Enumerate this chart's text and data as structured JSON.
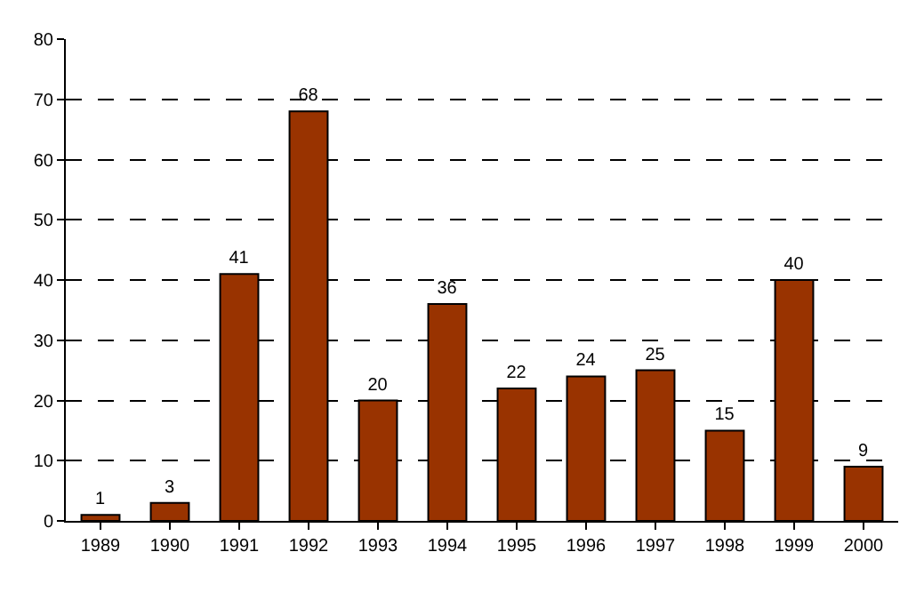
{
  "chart_data": {
    "type": "bar",
    "categories": [
      "1989",
      "1990",
      "1991",
      "1992",
      "1993",
      "1994",
      "1995",
      "1996",
      "1997",
      "1998",
      "1999",
      "2000"
    ],
    "values": [
      1,
      3,
      41,
      68,
      20,
      36,
      22,
      24,
      25,
      15,
      40,
      9
    ],
    "color": "#993300",
    "ylim": [
      0,
      80
    ],
    "yticks": [
      0,
      10,
      20,
      30,
      40,
      50,
      60,
      70,
      80
    ],
    "grid": "y",
    "data_labels": true
  }
}
